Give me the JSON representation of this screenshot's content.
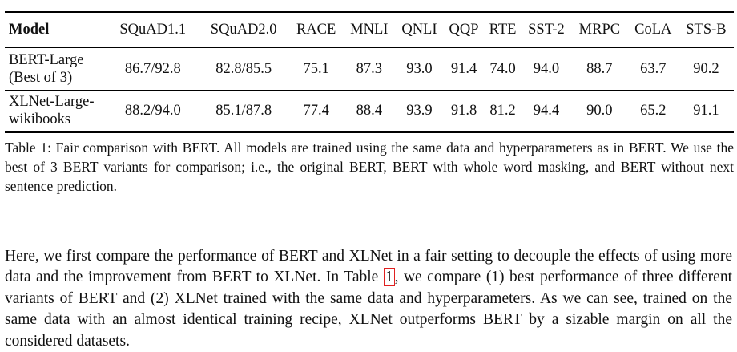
{
  "table": {
    "headers": [
      "Model",
      "SQuAD1.1",
      "SQuAD2.0",
      "RACE",
      "MNLI",
      "QNLI",
      "QQP",
      "RTE",
      "SST-2",
      "MRPC",
      "CoLA",
      "STS-B"
    ],
    "rows": [
      {
        "model_line1": "BERT-Large",
        "model_line2": "(Best of 3)",
        "values": [
          "86.7/92.8",
          "82.8/85.5",
          "75.1",
          "87.3",
          "93.0",
          "91.4",
          "74.0",
          "94.0",
          "88.7",
          "63.7",
          "90.2"
        ]
      },
      {
        "model_line1": "XLNet-Large-",
        "model_line2": "wikibooks",
        "values": [
          "88.2/94.0",
          "85.1/87.8",
          "77.4",
          "88.4",
          "93.9",
          "91.8",
          "81.2",
          "94.4",
          "90.0",
          "65.2",
          "91.1"
        ]
      }
    ]
  },
  "caption": "Table 1: Fair comparison with BERT. All models are trained using the same data and hyperparameters as in BERT. We use the best of 3 BERT variants for comparison; i.e., the original BERT, BERT with whole word masking, and BERT without next sentence prediction.",
  "paragraph": {
    "before_ref": "Here, we first compare the performance of BERT and XLNet in a fair setting to decouple the effects of using more data and the improvement from BERT to XLNet. In Table ",
    "ref": "1",
    "after_ref": ", we compare (1) best performance of three different variants of BERT and (2) XLNet trained with the same data and hyperparameters. As we can see, trained on the same data with an almost identical training recipe, XLNet outperforms BERT by a sizable margin on all the considered datasets."
  },
  "colors": {
    "ref_box": "#e02020",
    "text": "#111111"
  }
}
